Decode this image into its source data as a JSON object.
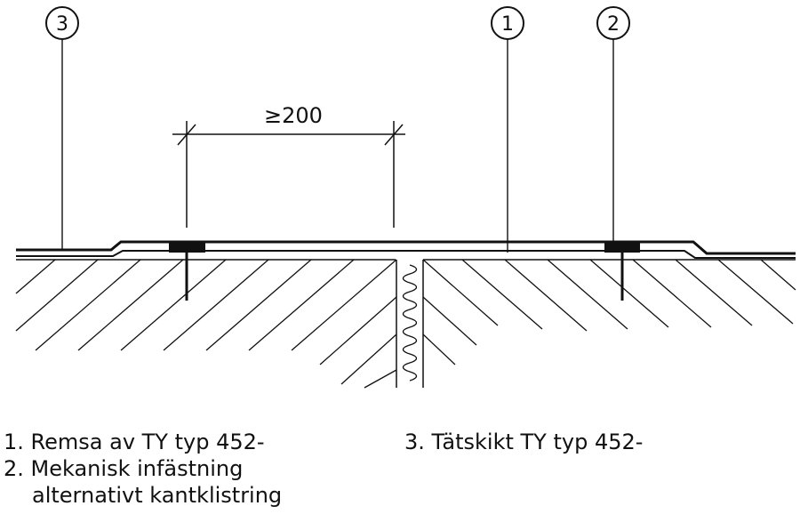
{
  "callouts": {
    "one": "1",
    "two": "2",
    "three": "3"
  },
  "dimension": {
    "label": "≥200"
  },
  "legend": {
    "item1": "1. Remsa av TY typ 452-",
    "item2_line1": "2. Mekanisk infästning",
    "item2_line2": "alternativt kantklistring",
    "item3": "3. Tätskikt TY typ 452-"
  },
  "colors": {
    "stroke": "#111111",
    "background": "#ffffff"
  }
}
